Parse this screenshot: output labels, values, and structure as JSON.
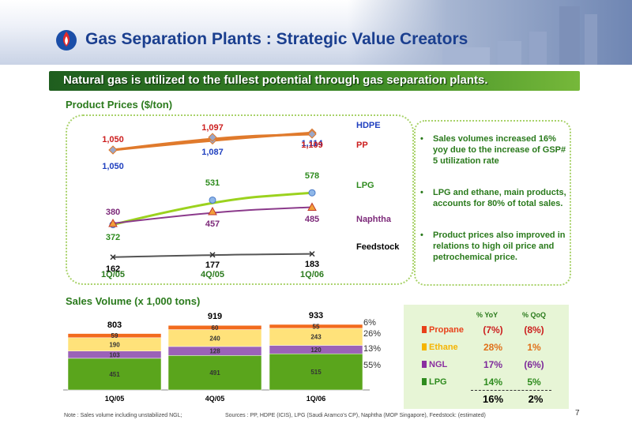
{
  "title": "Gas Separation Plants : Strategic Value Creators",
  "banner": "Natural gas is utilized to the fullest potential through gas separation plants.",
  "page_number": "7",
  "colors": {
    "title": "#1b3f8f",
    "green_text": "#2a7a1c",
    "hdpe": "#1f3fbf",
    "pp": "#cc1e1e",
    "lpg": "#2e8b1e",
    "naphtha": "#7d2a7a",
    "feedstock": "#000000"
  },
  "price_section": {
    "heading": "Product Prices ($/ton)"
  },
  "volume_section": {
    "heading": "Sales Volume (x 1,000 tons)"
  },
  "bullets": [
    "Sales volumes increased 16% yoy due to the increase of GSP# 5 utilization rate",
    "LPG and ethane, main products, accounts for 80% of total sales.",
    "Product prices also improved in relations to high oil price and petrochemical price."
  ],
  "chart_data": [
    {
      "type": "line",
      "title": "Product Prices ($/ton)",
      "categories": [
        "1Q/05",
        "4Q/05",
        "1Q/06"
      ],
      "series": [
        {
          "name": "HDPE",
          "values": [
            1050,
            1087,
            1114
          ],
          "labels": [
            "1,050",
            "1,087",
            "1,114"
          ],
          "color": "#1f3fbf"
        },
        {
          "name": "PP",
          "values": [
            1050,
            1097,
            1109
          ],
          "labels": [
            "1,050",
            "1,097",
            "1,109"
          ],
          "color": "#cc1e1e"
        },
        {
          "name": "LPG",
          "values": [
            372,
            531,
            578
          ],
          "labels": [
            "372",
            "531",
            "578"
          ],
          "color": "#2e8b1e"
        },
        {
          "name": "Naphtha",
          "values": [
            380,
            457,
            485
          ],
          "labels": [
            "380",
            "457",
            "485"
          ],
          "color": "#7d2a7a"
        },
        {
          "name": "Feedstock",
          "values": [
            162,
            177,
            183
          ],
          "labels": [
            "162",
            "177",
            "183"
          ],
          "color": "#000000"
        }
      ]
    },
    {
      "type": "bar",
      "stacked": true,
      "title": "Sales Volume (x 1,000 tons)",
      "categories": [
        "1Q/05",
        "4Q/05",
        "1Q/06"
      ],
      "totals": [
        "803",
        "919",
        "933"
      ],
      "series": [
        {
          "name": "LPG",
          "values": [
            451,
            491,
            515
          ],
          "color": "#5aa51c",
          "share": "55%"
        },
        {
          "name": "NGL",
          "values": [
            103,
            128,
            120
          ],
          "color": "#9b62b8",
          "share": "13%"
        },
        {
          "name": "Ethane",
          "values": [
            190,
            240,
            243
          ],
          "color": "#ffe27a",
          "share": "26%"
        },
        {
          "name": "Propane",
          "values": [
            59,
            60,
            55
          ],
          "color": "#f26b1d",
          "share": "6%"
        }
      ]
    },
    {
      "type": "table",
      "columns": [
        "% YoY",
        "% QoQ"
      ],
      "rows": [
        {
          "product": "Propane",
          "yoy": "(7%)",
          "qoq": "(8%)",
          "color": "#e8411a"
        },
        {
          "product": "Ethane",
          "yoy": "28%",
          "qoq": "1%",
          "color": "#f5b400"
        },
        {
          "product": "NGL",
          "yoy": "17%",
          "qoq": "(6%)",
          "color": "#8a2ea0"
        },
        {
          "product": "LPG",
          "yoy": "14%",
          "qoq": "5%",
          "color": "#2e8b1e"
        }
      ],
      "total": {
        "yoy": "16%",
        "qoq": "2%"
      }
    }
  ],
  "footnotes": {
    "note": "Note : Sales volume including unstabilized NGL;",
    "sources": "Sources : PP, HDPE (ICIS), LPG (Saudi Aramco's CP), Naphtha (MOP Singapore), Feedstock: (estimated)"
  }
}
